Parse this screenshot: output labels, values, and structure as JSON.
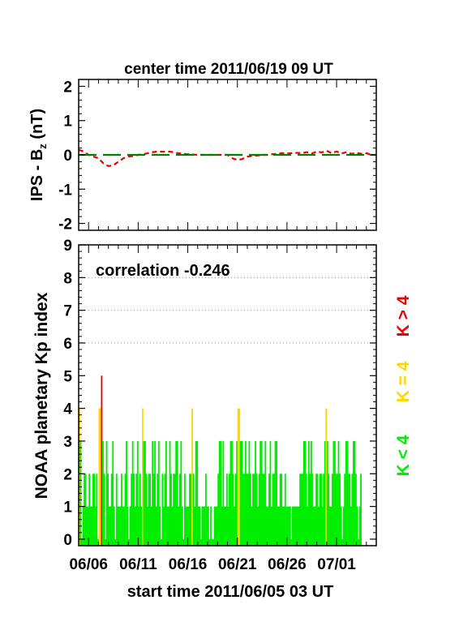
{
  "chart_data": [
    {
      "type": "line",
      "title": "center time 2011/06/19 09 UT",
      "ylabel": "IPS - B",
      "ylabel_sub": "z",
      "ylabel_unit": " (nT)",
      "ylim": [
        -2.2,
        2.2
      ],
      "yticks": [
        -2,
        -1,
        0,
        1,
        2
      ],
      "xlim": [
        0,
        30
      ],
      "series": [
        {
          "color": "#ee0000",
          "style": "dashed",
          "x": [
            0,
            0.5,
            1,
            1.5,
            2,
            2.5,
            3,
            3.5,
            4,
            4.5,
            5,
            5.5,
            6,
            6.5,
            7,
            7.5,
            8,
            8.5,
            9,
            9.5,
            10,
            10.5,
            11,
            11.5,
            12,
            12.5,
            13,
            13.5,
            14,
            14.5,
            15,
            15.5,
            16,
            16.5,
            17,
            17.5,
            18,
            18.5,
            19,
            19.5,
            20,
            20.5,
            21,
            21.5,
            22,
            22.5,
            23,
            23.5,
            24,
            24.5,
            25,
            25.5,
            26,
            26.5,
            27,
            27.5,
            28,
            28.5,
            29,
            29.5
          ],
          "values": [
            0.15,
            0.1,
            0.0,
            -0.05,
            -0.1,
            -0.25,
            -0.33,
            -0.3,
            -0.2,
            -0.1,
            -0.05,
            -0.03,
            0.0,
            0.02,
            0.05,
            0.08,
            0.1,
            0.09,
            0.1,
            0.08,
            0.05,
            0.03,
            0.02,
            0.01,
            0.0,
            0.0,
            0.0,
            0.0,
            0.0,
            0.0,
            0.0,
            -0.1,
            -0.15,
            -0.12,
            -0.05,
            -0.03,
            -0.02,
            0.0,
            0.0,
            0.02,
            0.03,
            0.05,
            0.04,
            0.05,
            0.06,
            0.05,
            0.08,
            0.04,
            0.1,
            0.07,
            0.12,
            0.05,
            0.1,
            0.04,
            0.08,
            0.03,
            0.06,
            0.03,
            0.05,
            0.0
          ]
        },
        {
          "color": "#008000",
          "style": "long-dash",
          "x": [
            0,
            30
          ],
          "values": [
            0,
            0
          ]
        }
      ]
    },
    {
      "type": "bar",
      "ylabel": "NOAA planetary Kp index",
      "annotation": "correlation -0.246",
      "xlabel": "start time 2011/06/05 03 UT",
      "ylim": [
        -0.2,
        9
      ],
      "yticks": [
        0,
        1,
        2,
        3,
        4,
        5,
        6,
        7,
        8,
        9
      ],
      "xlim": [
        0,
        30
      ],
      "xticks": [
        {
          "x": 1.0,
          "label": "06/06"
        },
        {
          "x": 6.0,
          "label": "06/11"
        },
        {
          "x": 11.0,
          "label": "06/16"
        },
        {
          "x": 16.0,
          "label": "06/21"
        },
        {
          "x": 21.0,
          "label": "06/26"
        },
        {
          "x": 26.0,
          "label": "07/01"
        }
      ],
      "grid_y": [
        6,
        7,
        8
      ],
      "legend": [
        {
          "label": "K > 4",
          "color": "#ee0000"
        },
        {
          "label": "K = 4",
          "color": "#ffd700"
        },
        {
          "label": "K < 4",
          "color": "#00ee00"
        }
      ],
      "bar_interval_days": 0.125,
      "values": [
        4,
        3,
        0,
        1,
        2,
        2,
        1,
        1,
        2,
        1,
        1,
        2,
        2,
        1,
        2,
        0,
        4,
        4,
        5,
        3,
        2,
        0,
        3,
        2,
        1,
        1,
        2,
        3,
        1,
        0,
        2,
        1,
        1,
        1,
        2,
        1,
        1,
        2,
        3,
        1,
        0,
        1,
        2,
        3,
        2,
        1,
        2,
        3,
        1,
        2,
        1,
        4,
        3,
        3,
        2,
        1,
        2,
        2,
        1,
        3,
        2,
        3,
        1,
        2,
        3,
        1,
        0,
        2,
        1,
        2,
        3,
        1,
        1,
        3,
        2,
        1,
        2,
        2,
        3,
        3,
        1,
        2,
        3,
        1,
        0,
        2,
        1,
        1,
        1,
        2,
        2,
        4,
        2,
        1,
        3,
        3,
        1,
        1,
        0,
        1,
        1,
        1,
        2,
        1,
        1,
        0,
        1,
        0,
        0,
        1,
        1,
        1,
        2,
        3,
        3,
        1,
        3,
        1,
        1,
        2,
        1,
        2,
        3,
        3,
        2,
        1,
        2,
        3,
        4,
        4,
        3,
        3,
        2,
        2,
        3,
        2,
        2,
        3,
        2,
        1,
        2,
        2,
        3,
        2,
        1,
        2,
        3,
        3,
        2,
        2,
        3,
        1,
        1,
        2,
        3,
        1,
        2,
        2,
        3,
        3,
        1,
        1,
        2,
        2,
        1,
        1,
        2,
        1,
        1,
        1,
        1,
        0,
        1,
        1,
        1,
        1,
        1,
        1,
        2,
        2,
        2,
        3,
        3,
        2,
        1,
        3,
        2,
        3,
        2,
        1,
        1,
        2,
        2,
        1,
        2,
        2,
        1,
        2,
        3,
        4,
        3,
        2,
        1,
        1,
        2,
        3,
        3,
        2,
        2,
        3,
        2,
        1,
        0,
        1,
        2,
        3,
        3,
        2,
        2,
        1,
        2,
        3,
        3,
        2,
        1,
        0,
        1,
        2
      ]
    }
  ]
}
